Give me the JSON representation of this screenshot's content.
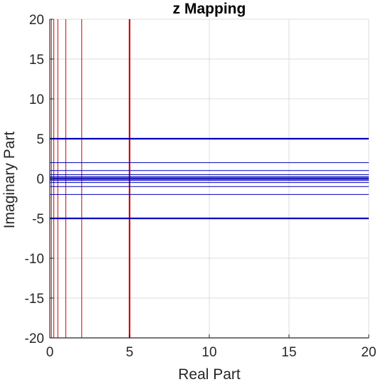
{
  "chart_data": {
    "type": "line",
    "title": "z Mapping",
    "xlabel": "Real Part",
    "ylabel": "Imaginary Part",
    "xlim": [
      0,
      20
    ],
    "ylim": [
      -20,
      20
    ],
    "xticks": [
      0,
      5,
      10,
      15,
      20
    ],
    "yticks": [
      -20,
      -15,
      -10,
      -5,
      0,
      5,
      10,
      15,
      20
    ],
    "grid": true,
    "series": [
      {
        "color": "#cc0000",
        "orientation": "vertical",
        "x_values": [
          0.1,
          0.25,
          0.5,
          1,
          2,
          5
        ],
        "thick_at": [
          5
        ]
      },
      {
        "color": "#0000bb",
        "orientation": "horizontal",
        "y_values": [
          -5,
          -2,
          -1,
          -0.5,
          -0.25,
          -0.1,
          0,
          0.1,
          0.25,
          0.5,
          1,
          2,
          5
        ],
        "thick_at": [
          -5,
          5
        ]
      }
    ]
  }
}
